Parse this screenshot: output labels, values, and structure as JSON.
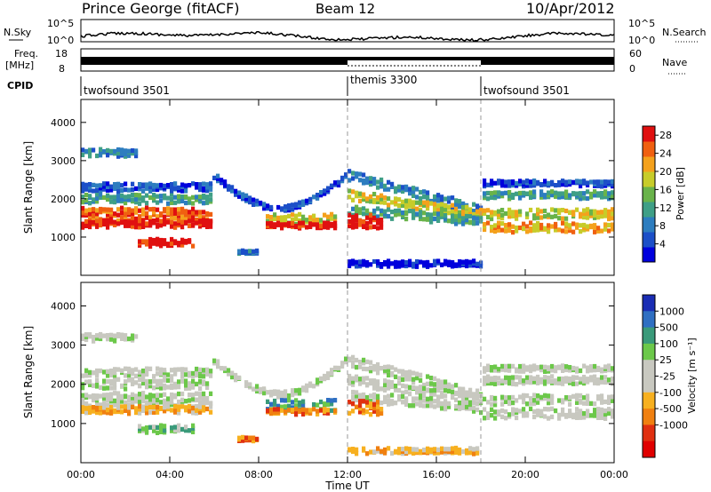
{
  "header": {
    "station": "Prince George (fitACF)",
    "beam": "Beam 12",
    "date": "10/Apr/2012"
  },
  "strip_labels": {
    "nsky": "N.Sky",
    "nsky_ticks": [
      "10^5",
      "10^0"
    ],
    "nsearch": "N.Search",
    "nsearch_ticks": [
      "10^5",
      "10^0"
    ],
    "freq_title": "Freq.",
    "freq_unit": "[MHz]",
    "freq_ticks": [
      "18",
      "8"
    ],
    "nave": "Nave",
    "nave_ticks": [
      "60",
      "0"
    ],
    "cpid": "CPID"
  },
  "cpid_segments": [
    {
      "label": "twofsound 3501",
      "start": 0,
      "end": 12
    },
    {
      "label": "themis 3300",
      "start": 12,
      "end": 18
    },
    {
      "label": "twofsound 3501",
      "start": 18,
      "end": 24
    }
  ],
  "colors": {
    "power": [
      "#0000dd",
      "#1c4fc8",
      "#2d7dbf",
      "#3f9f86",
      "#69b34a",
      "#c7cc2a",
      "#f4a11c",
      "#f06010",
      "#e01010"
    ],
    "velocity": [
      "#1a2db4",
      "#2f6fc2",
      "#3a9a7a",
      "#6cc84a",
      "#c8c8c0",
      "#c8c8c0",
      "#f7b020",
      "#f08010",
      "#e03010",
      "#e00000"
    ]
  },
  "chart_data": [
    {
      "type": "heatmap",
      "name": "power",
      "ylabel": "Slant Range [km]",
      "xlabel": "Time UT",
      "xlim": [
        0,
        24
      ],
      "ylim": [
        0,
        4600
      ],
      "x_ticks": [
        "00:00",
        "04:00",
        "08:00",
        "12:00",
        "16:00",
        "20:00",
        "00:00"
      ],
      "y_ticks": [
        1000,
        2000,
        3000,
        4000
      ],
      "colorbar": {
        "label": "Power [dB]",
        "ticks": [
          4,
          8,
          12,
          16,
          20,
          24,
          28
        ],
        "range": [
          0,
          30
        ]
      }
    },
    {
      "type": "heatmap",
      "name": "velocity",
      "ylabel": "Slant Range [km]",
      "xlabel": "Time UT",
      "xlim": [
        0,
        24
      ],
      "ylim": [
        0,
        4600
      ],
      "x_ticks": [
        "00:00",
        "04:00",
        "08:00",
        "12:00",
        "16:00",
        "20:00",
        "00:00"
      ],
      "y_ticks": [
        1000,
        2000,
        3000,
        4000
      ],
      "colorbar": {
        "label": "Velocity [m s⁻¹]",
        "ticks": [
          "1000",
          "500",
          "100",
          "25",
          "-25",
          "-100",
          "-500",
          "-1000"
        ]
      }
    }
  ]
}
